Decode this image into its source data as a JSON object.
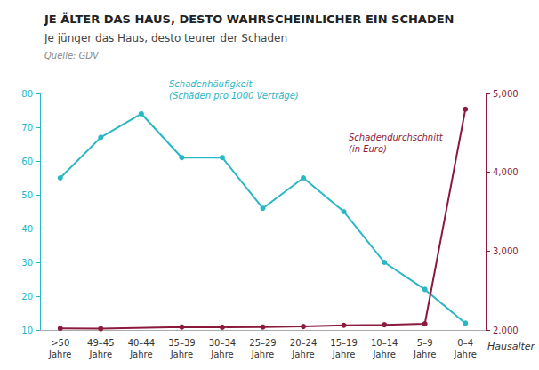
{
  "chart_data": {
    "type": "line",
    "title": "JE ÄLTER DAS HAUS, DESTO WAHRSCHEINLICHER EIN SCHADEN",
    "subtitle": "Je jünger das Haus, desto teurer der Schaden",
    "source": "Quelle: GDV",
    "xlabel": "Hausalter",
    "categories": [
      ">50\nJahre",
      "49–45\nJahre",
      "40–44\nJahre",
      "35–39\nJahre",
      "30–34\nJahre",
      "25–29\nJahre",
      "20–24\nJahre",
      "15–19\nJahre",
      "10–14\nJahre",
      "5–9\nJahre",
      "0–4\nJahre"
    ],
    "series": [
      {
        "color": "#29B6C5",
        "marker": "circle",
        "values": [
          55,
          67,
          74,
          61,
          61,
          46,
          55,
          45,
          30,
          22,
          12
        ]
      },
      {
        "color": "#8B1A3C",
        "marker": "circle",
        "axis": "y2",
        "values": [
          2020,
          2016,
          null,
          2037,
          2035,
          2037,
          2044,
          2059,
          2066,
          2079,
          4800
        ]
      }
    ],
    "annotations": [
      "Schadenhäufigkeit\n(Schäden pro 1000 Verträge)",
      "Schadendurchschnitt\n(in Euro)"
    ],
    "ylim": [
      10,
      80
    ],
    "yticks": [
      10,
      20,
      30,
      40,
      50,
      60,
      70,
      80
    ],
    "y2lim": [
      2000,
      5000
    ],
    "y2ticks": [
      2000,
      3000,
      4000,
      5000
    ],
    "grid": false
  }
}
